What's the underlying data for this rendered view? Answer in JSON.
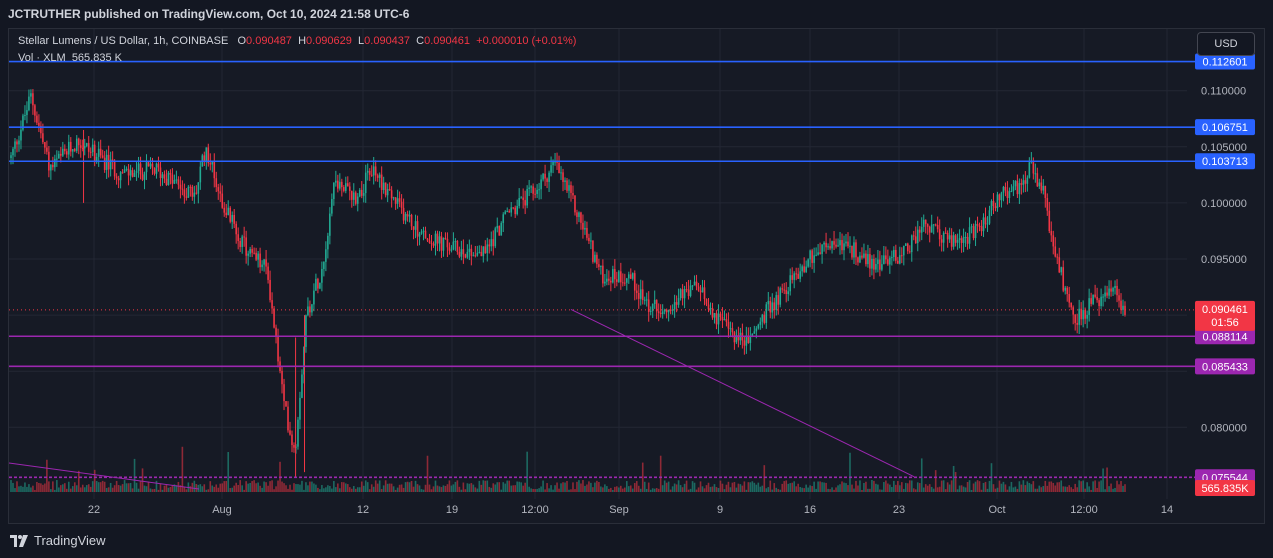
{
  "publisher_line": "JCTRUTHER published on TradingView.com, Oct 10, 2024 21:58 UTC-6",
  "legend": {
    "symbol": "Stellar Lumens / US Dollar, 1h, COINBASE",
    "o_label": "O",
    "o_value": "0.090487",
    "h_label": "H",
    "h_value": "0.090629",
    "l_label": "L",
    "l_value": "0.090437",
    "c_label": "C",
    "c_value": "0.090461",
    "change": "+0.000010 (+0.01%)",
    "vol_label": "Vol · XLM",
    "vol_value": "565.835 K"
  },
  "currency_button": "USD",
  "brand": "TradingView",
  "colors": {
    "background": "#161a25",
    "up": "#22ab94",
    "down": "#f23645",
    "blue_line": "#2962ff",
    "purple_line": "#9c27b0",
    "grid": "#232734",
    "text": "#b2b5be"
  },
  "chart_data": {
    "type": "candlestick",
    "symbol": "Stellar Lumens / US Dollar",
    "interval": "1h",
    "exchange": "COINBASE",
    "y_axis_ticks": [
      "0.110000",
      "0.105000",
      "0.100000",
      "0.095000",
      "0.080000"
    ],
    "ylim": [
      0.0745,
      0.1155
    ],
    "x_axis_ticks": [
      "22",
      "Aug",
      "12",
      "19",
      "12:00",
      "Sep",
      "9",
      "16",
      "23",
      "Oct",
      "12:00",
      "14"
    ],
    "grid": true,
    "last_price": "0.090461",
    "countdown": "01:56",
    "volume_last": "565.835K",
    "horizontal_levels": [
      {
        "value": 0.112601,
        "label": "0.112601",
        "color": "blue"
      },
      {
        "value": 0.106751,
        "label": "0.106751",
        "color": "blue"
      },
      {
        "value": 0.103713,
        "label": "0.103713",
        "color": "blue"
      },
      {
        "value": 0.088114,
        "label": "0.088114",
        "color": "purple"
      },
      {
        "value": 0.085433,
        "label": "0.085433",
        "color": "purple"
      },
      {
        "value": 0.075544,
        "label": "0.075544",
        "color": "purple"
      }
    ],
    "price_path_keypoints": [
      {
        "t": 0,
        "v": 0.104
      },
      {
        "t": 0.018,
        "v": 0.1095
      },
      {
        "t": 0.035,
        "v": 0.103
      },
      {
        "t": 0.06,
        "v": 0.1055
      },
      {
        "t": 0.1,
        "v": 0.1025
      },
      {
        "t": 0.13,
        "v": 0.103
      },
      {
        "t": 0.165,
        "v": 0.1005
      },
      {
        "t": 0.175,
        "v": 0.105
      },
      {
        "t": 0.19,
        "v": 0.1
      },
      {
        "t": 0.21,
        "v": 0.096
      },
      {
        "t": 0.23,
        "v": 0.094
      },
      {
        "t": 0.245,
        "v": 0.082
      },
      {
        "t": 0.255,
        "v": 0.0778
      },
      {
        "t": 0.265,
        "v": 0.09
      },
      {
        "t": 0.28,
        "v": 0.0945
      },
      {
        "t": 0.29,
        "v": 0.102
      },
      {
        "t": 0.31,
        "v": 0.1005
      },
      {
        "t": 0.325,
        "v": 0.103
      },
      {
        "t": 0.345,
        "v": 0.1
      },
      {
        "t": 0.37,
        "v": 0.097
      },
      {
        "t": 0.395,
        "v": 0.096
      },
      {
        "t": 0.425,
        "v": 0.0955
      },
      {
        "t": 0.445,
        "v": 0.099
      },
      {
        "t": 0.47,
        "v": 0.101
      },
      {
        "t": 0.488,
        "v": 0.1035
      },
      {
        "t": 0.5,
        "v": 0.101
      },
      {
        "t": 0.515,
        "v": 0.0975
      },
      {
        "t": 0.53,
        "v": 0.0935
      },
      {
        "t": 0.555,
        "v": 0.0935
      },
      {
        "t": 0.575,
        "v": 0.0905
      },
      {
        "t": 0.6,
        "v": 0.0915
      },
      {
        "t": 0.615,
        "v": 0.0925
      },
      {
        "t": 0.64,
        "v": 0.089
      },
      {
        "t": 0.66,
        "v": 0.0875
      },
      {
        "t": 0.68,
        "v": 0.0905
      },
      {
        "t": 0.7,
        "v": 0.093
      },
      {
        "t": 0.72,
        "v": 0.0955
      },
      {
        "t": 0.745,
        "v": 0.0965
      },
      {
        "t": 0.775,
        "v": 0.0945
      },
      {
        "t": 0.8,
        "v": 0.0955
      },
      {
        "t": 0.82,
        "v": 0.098
      },
      {
        "t": 0.845,
        "v": 0.0965
      },
      {
        "t": 0.87,
        "v": 0.0975
      },
      {
        "t": 0.885,
        "v": 0.1005
      },
      {
        "t": 0.905,
        "v": 0.1015
      },
      {
        "t": 0.915,
        "v": 0.1032
      },
      {
        "t": 0.928,
        "v": 0.1005
      },
      {
        "t": 0.935,
        "v": 0.096
      },
      {
        "t": 0.955,
        "v": 0.0895
      },
      {
        "t": 0.97,
        "v": 0.091
      },
      {
        "t": 0.99,
        "v": 0.092
      },
      {
        "t": 1.0,
        "v": 0.0905
      }
    ]
  }
}
